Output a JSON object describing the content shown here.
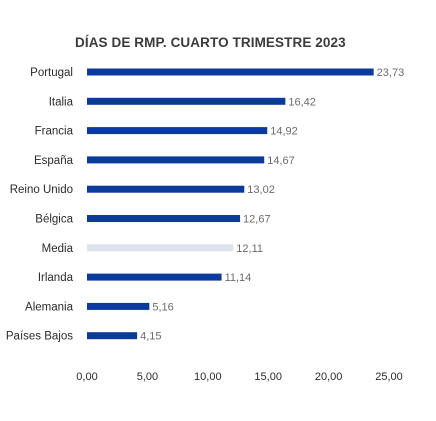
{
  "chart_data": {
    "type": "bar",
    "orientation": "horizontal",
    "title": "DÍAS DE RMP. CUARTO TRIMESTRE 2023",
    "categories": [
      "Portugal",
      "Italia",
      "Francia",
      "España",
      "Reino Unido",
      "Bélgica",
      "Media",
      "Irlanda",
      "Alemania",
      "Países Bajos"
    ],
    "values": [
      23.73,
      16.42,
      14.92,
      14.67,
      13.02,
      12.67,
      12.11,
      11.14,
      5.16,
      4.15
    ],
    "value_labels": [
      "23,73",
      "16,42",
      "14,92",
      "14,67",
      "13,02",
      "12,67",
      "12,11",
      "11,14",
      "5,16",
      "4,15"
    ],
    "highlight_category": "Media",
    "xlim": [
      0,
      25
    ],
    "xticks": [
      0,
      5,
      10,
      15,
      20,
      25
    ],
    "xtick_labels": [
      "0,00",
      "5,00",
      "10,00",
      "15,00",
      "20,00",
      "25,00"
    ],
    "xlabel": "",
    "ylabel": "",
    "grid": false,
    "legend": "none",
    "colors": {
      "bar": "#0a3a9c",
      "highlight": "#dce3ee",
      "value_label": "#6b6b6b",
      "text": "#2b2b2b"
    }
  }
}
